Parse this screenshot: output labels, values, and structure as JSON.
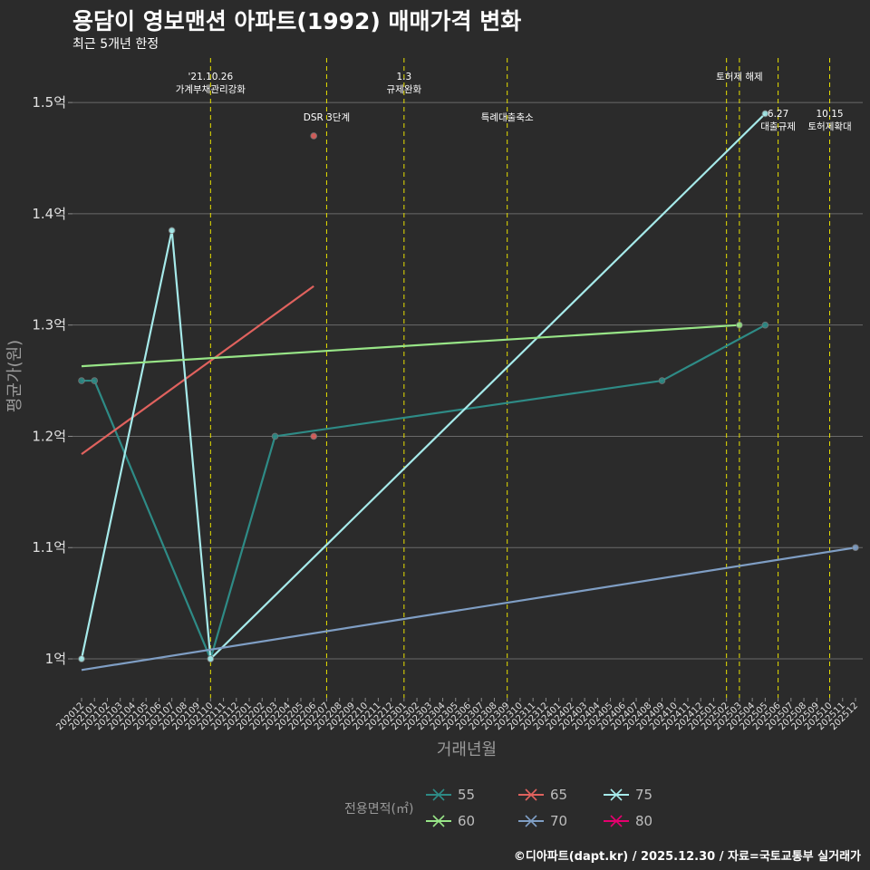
{
  "chart_data": {
    "type": "line",
    "title": "용담이 영보맨션 아파트(1992) 매매가격 변화",
    "subtitle": "최근 5개년 한정",
    "xlabel": "거래년월",
    "ylabel": "평균가(원)",
    "caption": "©디아파트(dapt.kr) / 2025.12.30 / 자료=국토교통부 실거래가",
    "ylim": [
      0.965,
      1.54
    ],
    "y_ticks": [
      {
        "value": 1.0,
        "label": "1억"
      },
      {
        "value": 1.1,
        "label": "1.1억"
      },
      {
        "value": 1.2,
        "label": "1.2억"
      },
      {
        "value": 1.3,
        "label": "1.3억"
      },
      {
        "value": 1.4,
        "label": "1.4억"
      },
      {
        "value": 1.5,
        "label": "1.5억"
      }
    ],
    "categories": [
      "202012",
      "202101",
      "202102",
      "202103",
      "202104",
      "202105",
      "202106",
      "202107",
      "202108",
      "202109",
      "202110",
      "202111",
      "202112",
      "202201",
      "202202",
      "202203",
      "202204",
      "202205",
      "202206",
      "202207",
      "202208",
      "202209",
      "202210",
      "202211",
      "202212",
      "202301",
      "202302",
      "202303",
      "202304",
      "202305",
      "202306",
      "202307",
      "202308",
      "202309",
      "202310",
      "202311",
      "202312",
      "202401",
      "202402",
      "202403",
      "202404",
      "202405",
      "202406",
      "202407",
      "202408",
      "202409",
      "202410",
      "202411",
      "202412",
      "202501",
      "202502",
      "202503",
      "202504",
      "202505",
      "202506",
      "202507",
      "202508",
      "202509",
      "202510",
      "202511",
      "202512"
    ],
    "events": [
      {
        "month": "202110",
        "lines": [
          "'21.10.26",
          "가계부채관리강화"
        ],
        "row": 0
      },
      {
        "month": "202207",
        "lines": [
          "DSR 3단계"
        ],
        "row": 1
      },
      {
        "month": "202301",
        "lines": [
          "1.3",
          "규제완화"
        ],
        "row": 0
      },
      {
        "month": "202309",
        "lines": [
          "특례대출축소"
        ],
        "row": 1
      },
      {
        "month": "202502",
        "lines": [],
        "row": 0
      },
      {
        "month": "202503",
        "lines": [
          "토허제 해제"
        ],
        "row": 0
      },
      {
        "month": "202506",
        "lines": [
          "6.27",
          "대출규제"
        ],
        "row": 2
      },
      {
        "month": "202510",
        "lines": [
          "10.15",
          "토허제확대"
        ],
        "row": 2
      }
    ],
    "series": [
      {
        "name": "55",
        "color": "#2e8b86",
        "points": [
          [
            "202012",
            1.25
          ],
          [
            "202101",
            1.25
          ],
          [
            "202110",
            1.0
          ],
          [
            "202203",
            1.2
          ],
          [
            "202409",
            1.25
          ],
          [
            "202505",
            1.3
          ]
        ]
      },
      {
        "name": "65",
        "color": "#e0625e",
        "points": [
          [
            "202206",
            1.47
          ],
          [
            "202206",
            1.2
          ]
        ],
        "trend": [
          [
            "202012",
            1.184
          ],
          [
            "202206",
            1.335
          ]
        ]
      },
      {
        "name": "75",
        "color": "#a6eaea",
        "points": [
          [
            "202012",
            1.0
          ],
          [
            "202107",
            1.385
          ],
          [
            "202110",
            1.0
          ],
          [
            "202505",
            1.49
          ]
        ]
      },
      {
        "name": "60",
        "color": "#98e587",
        "points": [
          [
            "202503",
            1.3
          ]
        ],
        "trend": [
          [
            "202012",
            1.263
          ],
          [
            "202503",
            1.3
          ]
        ]
      },
      {
        "name": "70",
        "color": "#7f9ec4",
        "points": [
          [
            "202512",
            1.1
          ]
        ],
        "trend": [
          [
            "202012",
            0.99
          ],
          [
            "202512",
            1.1
          ]
        ]
      },
      {
        "name": "80",
        "color": "#e5006e",
        "points": []
      }
    ],
    "legend": {
      "title": "전용면적(㎡)",
      "position": "bottom",
      "items": [
        "55",
        "65",
        "75",
        "60",
        "70",
        "80"
      ]
    }
  }
}
